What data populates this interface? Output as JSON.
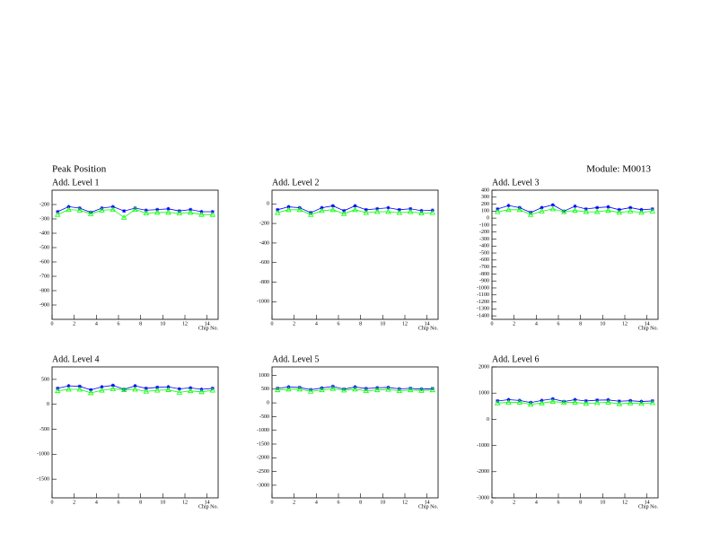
{
  "title": "Peak Position",
  "module": "Module: M0013",
  "chart_data": [
    {
      "type": "line",
      "title": "Add. Level 1",
      "xlabel": "Chip No.",
      "x": [
        0.5,
        1.5,
        2.5,
        3.5,
        4.5,
        5.5,
        6.5,
        7.5,
        8.5,
        9.5,
        10.5,
        11.5,
        12.5,
        13.5,
        14.5
      ],
      "xlim": [
        0,
        15
      ],
      "xticks": [
        0,
        2,
        4,
        6,
        8,
        10,
        12,
        14
      ],
      "ylim": [
        -1000,
        -100
      ],
      "yticks": [
        -900,
        -800,
        -700,
        -600,
        -500,
        -400,
        -300,
        -200
      ],
      "series": [
        {
          "color": "#0000ff",
          "marker": "star",
          "values": [
            -250,
            -215,
            -225,
            -255,
            -225,
            -215,
            -245,
            -225,
            -240,
            -235,
            -230,
            -245,
            -235,
            -250,
            -250
          ]
        },
        {
          "color": "#00ff00",
          "marker": "triangle",
          "values": [
            -270,
            -235,
            -240,
            -265,
            -240,
            -235,
            -290,
            -235,
            -260,
            -255,
            -255,
            -260,
            -255,
            -270,
            -270
          ]
        }
      ]
    },
    {
      "type": "line",
      "title": "Add. Level 2",
      "xlabel": "Chip No.",
      "x": [
        0.5,
        1.5,
        2.5,
        3.5,
        4.5,
        5.5,
        6.5,
        7.5,
        8.5,
        9.5,
        10.5,
        11.5,
        12.5,
        13.5,
        14.5
      ],
      "xlim": [
        0,
        15
      ],
      "xticks": [
        0,
        2,
        4,
        6,
        8,
        10,
        12,
        14
      ],
      "ylim": [
        -1180,
        140
      ],
      "yticks": [
        -1000,
        -800,
        -600,
        -400,
        -200,
        0
      ],
      "series": [
        {
          "color": "#0000ff",
          "marker": "star",
          "values": [
            -60,
            -30,
            -40,
            -90,
            -40,
            -20,
            -70,
            -20,
            -60,
            -50,
            -40,
            -60,
            -50,
            -70,
            -65
          ]
        },
        {
          "color": "#00ff00",
          "marker": "triangle",
          "values": [
            -90,
            -60,
            -60,
            -110,
            -70,
            -60,
            -100,
            -60,
            -90,
            -80,
            -80,
            -90,
            -80,
            -95,
            -90
          ]
        }
      ]
    },
    {
      "type": "line",
      "title": "Add. Level 3",
      "xlabel": "Chip No.",
      "x": [
        0.5,
        1.5,
        2.5,
        3.5,
        4.5,
        5.5,
        6.5,
        7.5,
        8.5,
        9.5,
        10.5,
        11.5,
        12.5,
        13.5,
        14.5
      ],
      "xlim": [
        0,
        15
      ],
      "xticks": [
        0,
        2,
        4,
        6,
        8,
        10,
        12,
        14
      ],
      "ylim": [
        -1450,
        400
      ],
      "yticks": [
        -1400,
        -1300,
        -1200,
        -1100,
        -1000,
        -900,
        -800,
        -700,
        -600,
        -500,
        -400,
        -300,
        -200,
        -100,
        0,
        100,
        200,
        300,
        400
      ],
      "series": [
        {
          "color": "#0000ff",
          "marker": "star",
          "values": [
            130,
            180,
            150,
            80,
            150,
            190,
            100,
            170,
            130,
            150,
            160,
            120,
            150,
            120,
            130
          ]
        },
        {
          "color": "#00ff00",
          "marker": "triangle",
          "values": [
            90,
            120,
            120,
            50,
            100,
            130,
            90,
            110,
            90,
            90,
            110,
            80,
            100,
            80,
            100
          ]
        }
      ]
    },
    {
      "type": "line",
      "title": "Add. Level 4",
      "xlabel": "Chip No.",
      "x": [
        0.5,
        1.5,
        2.5,
        3.5,
        4.5,
        5.5,
        6.5,
        7.5,
        8.5,
        9.5,
        10.5,
        11.5,
        12.5,
        13.5,
        14.5
      ],
      "xlim": [
        0,
        15
      ],
      "xticks": [
        0,
        2,
        4,
        6,
        8,
        10,
        12,
        14
      ],
      "ylim": [
        -1875,
        750
      ],
      "yticks": [
        -1500,
        -1000,
        -500,
        0,
        500
      ],
      "series": [
        {
          "color": "#0000ff",
          "marker": "star",
          "values": [
            320,
            370,
            360,
            290,
            350,
            380,
            300,
            370,
            320,
            340,
            350,
            310,
            330,
            300,
            320
          ]
        },
        {
          "color": "#00ff00",
          "marker": "triangle",
          "values": [
            270,
            300,
            300,
            230,
            280,
            310,
            290,
            300,
            260,
            280,
            290,
            240,
            270,
            250,
            280
          ]
        }
      ]
    },
    {
      "type": "line",
      "title": "Add. Level 5",
      "xlabel": "Chip No.",
      "x": [
        0.5,
        1.5,
        2.5,
        3.5,
        4.5,
        5.5,
        6.5,
        7.5,
        8.5,
        9.5,
        10.5,
        11.5,
        12.5,
        13.5,
        14.5
      ],
      "xlim": [
        0,
        15
      ],
      "xticks": [
        0,
        2,
        4,
        6,
        8,
        10,
        12,
        14
      ],
      "ylim": [
        -3460,
        1310
      ],
      "yticks": [
        -3000,
        -2500,
        -2000,
        -1500,
        -1000,
        -500,
        0,
        500,
        1000
      ],
      "series": [
        {
          "color": "#0000ff",
          "marker": "star",
          "values": [
            530,
            580,
            560,
            480,
            540,
            600,
            500,
            580,
            520,
            550,
            560,
            510,
            530,
            500,
            520
          ]
        },
        {
          "color": "#00ff00",
          "marker": "triangle",
          "values": [
            470,
            500,
            500,
            420,
            470,
            520,
            460,
            500,
            440,
            470,
            490,
            440,
            470,
            450,
            470
          ]
        }
      ]
    },
    {
      "type": "line",
      "title": "Add. Level 6",
      "xlabel": "Chip No.",
      "x": [
        0.5,
        1.5,
        2.5,
        3.5,
        4.5,
        5.5,
        6.5,
        7.5,
        8.5,
        9.5,
        10.5,
        11.5,
        12.5,
        13.5,
        14.5
      ],
      "xlim": [
        0,
        15
      ],
      "xticks": [
        0,
        2,
        4,
        6,
        8,
        10,
        12,
        14
      ],
      "ylim": [
        -3000,
        2000
      ],
      "yticks": [
        -3000,
        -2000,
        -1000,
        0,
        1000,
        2000
      ],
      "series": [
        {
          "color": "#0000ff",
          "marker": "star",
          "values": [
            700,
            750,
            720,
            640,
            720,
            780,
            680,
            750,
            700,
            730,
            740,
            690,
            710,
            680,
            700
          ]
        },
        {
          "color": "#00ff00",
          "marker": "triangle",
          "values": [
            620,
            650,
            650,
            570,
            620,
            680,
            640,
            650,
            600,
            630,
            650,
            590,
            620,
            600,
            630
          ]
        }
      ]
    }
  ]
}
